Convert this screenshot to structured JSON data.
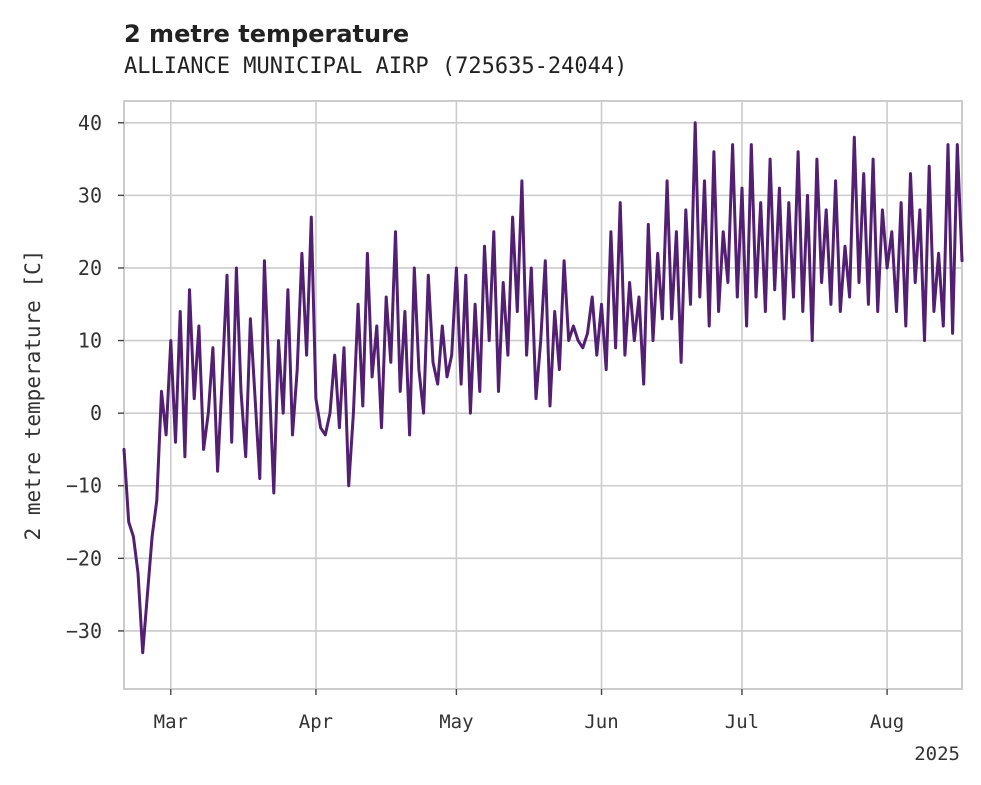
{
  "chart_data": {
    "type": "line",
    "title": "2 metre temperature",
    "subtitle": "ALLIANCE MUNICIPAL AIRP (725635-24044)",
    "xlabel": "",
    "ylabel": "2 metre temperature [C]",
    "x_range": [
      "2025-02-19",
      "2025-08-17"
    ],
    "ylim": [
      -38,
      43
    ],
    "y_ticks": [
      -30,
      -20,
      -10,
      0,
      10,
      20,
      30,
      40
    ],
    "y_tick_labels": [
      "−30",
      "−20",
      "−10",
      "0",
      "10",
      "20",
      "30",
      "40"
    ],
    "x_ticks": [
      {
        "date": "2025-03-01",
        "label": "Mar"
      },
      {
        "date": "2025-04-01",
        "label": "Apr"
      },
      {
        "date": "2025-05-01",
        "label": "May"
      },
      {
        "date": "2025-06-01",
        "label": "Jun"
      },
      {
        "date": "2025-07-01",
        "label": "Jul"
      },
      {
        "date": "2025-08-01",
        "label": "Aug"
      }
    ],
    "x_offset_label": "2025",
    "grid": true,
    "series": [
      {
        "color": "#531f72",
        "points": [
          [
            "2025-02-19",
            -5
          ],
          [
            "2025-02-20",
            -15
          ],
          [
            "2025-02-21",
            -17
          ],
          [
            "2025-02-22",
            -22
          ],
          [
            "2025-02-23",
            -33
          ],
          [
            "2025-02-24",
            -25
          ],
          [
            "2025-02-25",
            -17
          ],
          [
            "2025-02-26",
            -12
          ],
          [
            "2025-02-27",
            3
          ],
          [
            "2025-02-28",
            -3
          ],
          [
            "2025-03-01",
            10
          ],
          [
            "2025-03-02",
            -4
          ],
          [
            "2025-03-03",
            14
          ],
          [
            "2025-03-04",
            -6
          ],
          [
            "2025-03-05",
            17
          ],
          [
            "2025-03-06",
            2
          ],
          [
            "2025-03-07",
            12
          ],
          [
            "2025-03-08",
            -5
          ],
          [
            "2025-03-09",
            0
          ],
          [
            "2025-03-10",
            9
          ],
          [
            "2025-03-11",
            -8
          ],
          [
            "2025-03-12",
            5
          ],
          [
            "2025-03-13",
            19
          ],
          [
            "2025-03-14",
            -4
          ],
          [
            "2025-03-15",
            20
          ],
          [
            "2025-03-16",
            3
          ],
          [
            "2025-03-17",
            -6
          ],
          [
            "2025-03-18",
            13
          ],
          [
            "2025-03-19",
            2
          ],
          [
            "2025-03-20",
            -9
          ],
          [
            "2025-03-21",
            21
          ],
          [
            "2025-03-22",
            5
          ],
          [
            "2025-03-23",
            -11
          ],
          [
            "2025-03-24",
            10
          ],
          [
            "2025-03-25",
            0
          ],
          [
            "2025-03-26",
            17
          ],
          [
            "2025-03-27",
            -3
          ],
          [
            "2025-03-28",
            6
          ],
          [
            "2025-03-29",
            22
          ],
          [
            "2025-03-30",
            8
          ],
          [
            "2025-03-31",
            27
          ],
          [
            "2025-04-01",
            2
          ],
          [
            "2025-04-02",
            -2
          ],
          [
            "2025-04-03",
            -3
          ],
          [
            "2025-04-04",
            0
          ],
          [
            "2025-04-05",
            8
          ],
          [
            "2025-04-06",
            -2
          ],
          [
            "2025-04-07",
            9
          ],
          [
            "2025-04-08",
            -10
          ],
          [
            "2025-04-09",
            0
          ],
          [
            "2025-04-10",
            15
          ],
          [
            "2025-04-11",
            1
          ],
          [
            "2025-04-12",
            22
          ],
          [
            "2025-04-13",
            5
          ],
          [
            "2025-04-14",
            12
          ],
          [
            "2025-04-15",
            -2
          ],
          [
            "2025-04-16",
            16
          ],
          [
            "2025-04-17",
            7
          ],
          [
            "2025-04-18",
            25
          ],
          [
            "2025-04-19",
            3
          ],
          [
            "2025-04-20",
            14
          ],
          [
            "2025-04-21",
            -3
          ],
          [
            "2025-04-22",
            20
          ],
          [
            "2025-04-23",
            6
          ],
          [
            "2025-04-24",
            0
          ],
          [
            "2025-04-25",
            19
          ],
          [
            "2025-04-26",
            7
          ],
          [
            "2025-04-27",
            4
          ],
          [
            "2025-04-28",
            12
          ],
          [
            "2025-04-29",
            5
          ],
          [
            "2025-04-30",
            8
          ],
          [
            "2025-05-01",
            20
          ],
          [
            "2025-05-02",
            4
          ],
          [
            "2025-05-03",
            19
          ],
          [
            "2025-05-04",
            0
          ],
          [
            "2025-05-05",
            15
          ],
          [
            "2025-05-06",
            3
          ],
          [
            "2025-05-07",
            23
          ],
          [
            "2025-05-08",
            10
          ],
          [
            "2025-05-09",
            25
          ],
          [
            "2025-05-10",
            3
          ],
          [
            "2025-05-11",
            18
          ],
          [
            "2025-05-12",
            8
          ],
          [
            "2025-05-13",
            27
          ],
          [
            "2025-05-14",
            14
          ],
          [
            "2025-05-15",
            32
          ],
          [
            "2025-05-16",
            8
          ],
          [
            "2025-05-17",
            20
          ],
          [
            "2025-05-18",
            2
          ],
          [
            "2025-05-19",
            10
          ],
          [
            "2025-05-20",
            21
          ],
          [
            "2025-05-21",
            1
          ],
          [
            "2025-05-22",
            14
          ],
          [
            "2025-05-23",
            6
          ],
          [
            "2025-05-24",
            21
          ],
          [
            "2025-05-25",
            10
          ],
          [
            "2025-05-26",
            12
          ],
          [
            "2025-05-27",
            10
          ],
          [
            "2025-05-28",
            9
          ],
          [
            "2025-05-29",
            11
          ],
          [
            "2025-05-30",
            16
          ],
          [
            "2025-05-31",
            8
          ],
          [
            "2025-06-01",
            15
          ],
          [
            "2025-06-02",
            6
          ],
          [
            "2025-06-03",
            25
          ],
          [
            "2025-06-04",
            9
          ],
          [
            "2025-06-05",
            29
          ],
          [
            "2025-06-06",
            8
          ],
          [
            "2025-06-07",
            18
          ],
          [
            "2025-06-08",
            10
          ],
          [
            "2025-06-09",
            16
          ],
          [
            "2025-06-10",
            4
          ],
          [
            "2025-06-11",
            26
          ],
          [
            "2025-06-12",
            10
          ],
          [
            "2025-06-13",
            22
          ],
          [
            "2025-06-14",
            13
          ],
          [
            "2025-06-15",
            32
          ],
          [
            "2025-06-16",
            13
          ],
          [
            "2025-06-17",
            25
          ],
          [
            "2025-06-18",
            7
          ],
          [
            "2025-06-19",
            28
          ],
          [
            "2025-06-20",
            15
          ],
          [
            "2025-06-21",
            40
          ],
          [
            "2025-06-22",
            16
          ],
          [
            "2025-06-23",
            32
          ],
          [
            "2025-06-24",
            12
          ],
          [
            "2025-06-25",
            36
          ],
          [
            "2025-06-26",
            14
          ],
          [
            "2025-06-27",
            25
          ],
          [
            "2025-06-28",
            18
          ],
          [
            "2025-06-29",
            37
          ],
          [
            "2025-06-30",
            16
          ],
          [
            "2025-07-01",
            31
          ],
          [
            "2025-07-02",
            12
          ],
          [
            "2025-07-03",
            37
          ],
          [
            "2025-07-04",
            16
          ],
          [
            "2025-07-05",
            29
          ],
          [
            "2025-07-06",
            14
          ],
          [
            "2025-07-07",
            35
          ],
          [
            "2025-07-08",
            17
          ],
          [
            "2025-07-09",
            31
          ],
          [
            "2025-07-10",
            13
          ],
          [
            "2025-07-11",
            29
          ],
          [
            "2025-07-12",
            16
          ],
          [
            "2025-07-13",
            36
          ],
          [
            "2025-07-14",
            14
          ],
          [
            "2025-07-15",
            30
          ],
          [
            "2025-07-16",
            10
          ],
          [
            "2025-07-17",
            35
          ],
          [
            "2025-07-18",
            18
          ],
          [
            "2025-07-19",
            28
          ],
          [
            "2025-07-20",
            15
          ],
          [
            "2025-07-21",
            32
          ],
          [
            "2025-07-22",
            14
          ],
          [
            "2025-07-23",
            23
          ],
          [
            "2025-07-24",
            16
          ],
          [
            "2025-07-25",
            38
          ],
          [
            "2025-07-26",
            18
          ],
          [
            "2025-07-27",
            33
          ],
          [
            "2025-07-28",
            15
          ],
          [
            "2025-07-29",
            35
          ],
          [
            "2025-07-30",
            14
          ],
          [
            "2025-07-31",
            28
          ],
          [
            "2025-08-01",
            20
          ],
          [
            "2025-08-02",
            25
          ],
          [
            "2025-08-03",
            14
          ],
          [
            "2025-08-04",
            29
          ],
          [
            "2025-08-05",
            12
          ],
          [
            "2025-08-06",
            33
          ],
          [
            "2025-08-07",
            18
          ],
          [
            "2025-08-08",
            28
          ],
          [
            "2025-08-09",
            10
          ],
          [
            "2025-08-10",
            34
          ],
          [
            "2025-08-11",
            14
          ],
          [
            "2025-08-12",
            22
          ],
          [
            "2025-08-13",
            12
          ],
          [
            "2025-08-14",
            37
          ],
          [
            "2025-08-15",
            11
          ],
          [
            "2025-08-16",
            37
          ],
          [
            "2025-08-17",
            21
          ]
        ]
      }
    ]
  }
}
